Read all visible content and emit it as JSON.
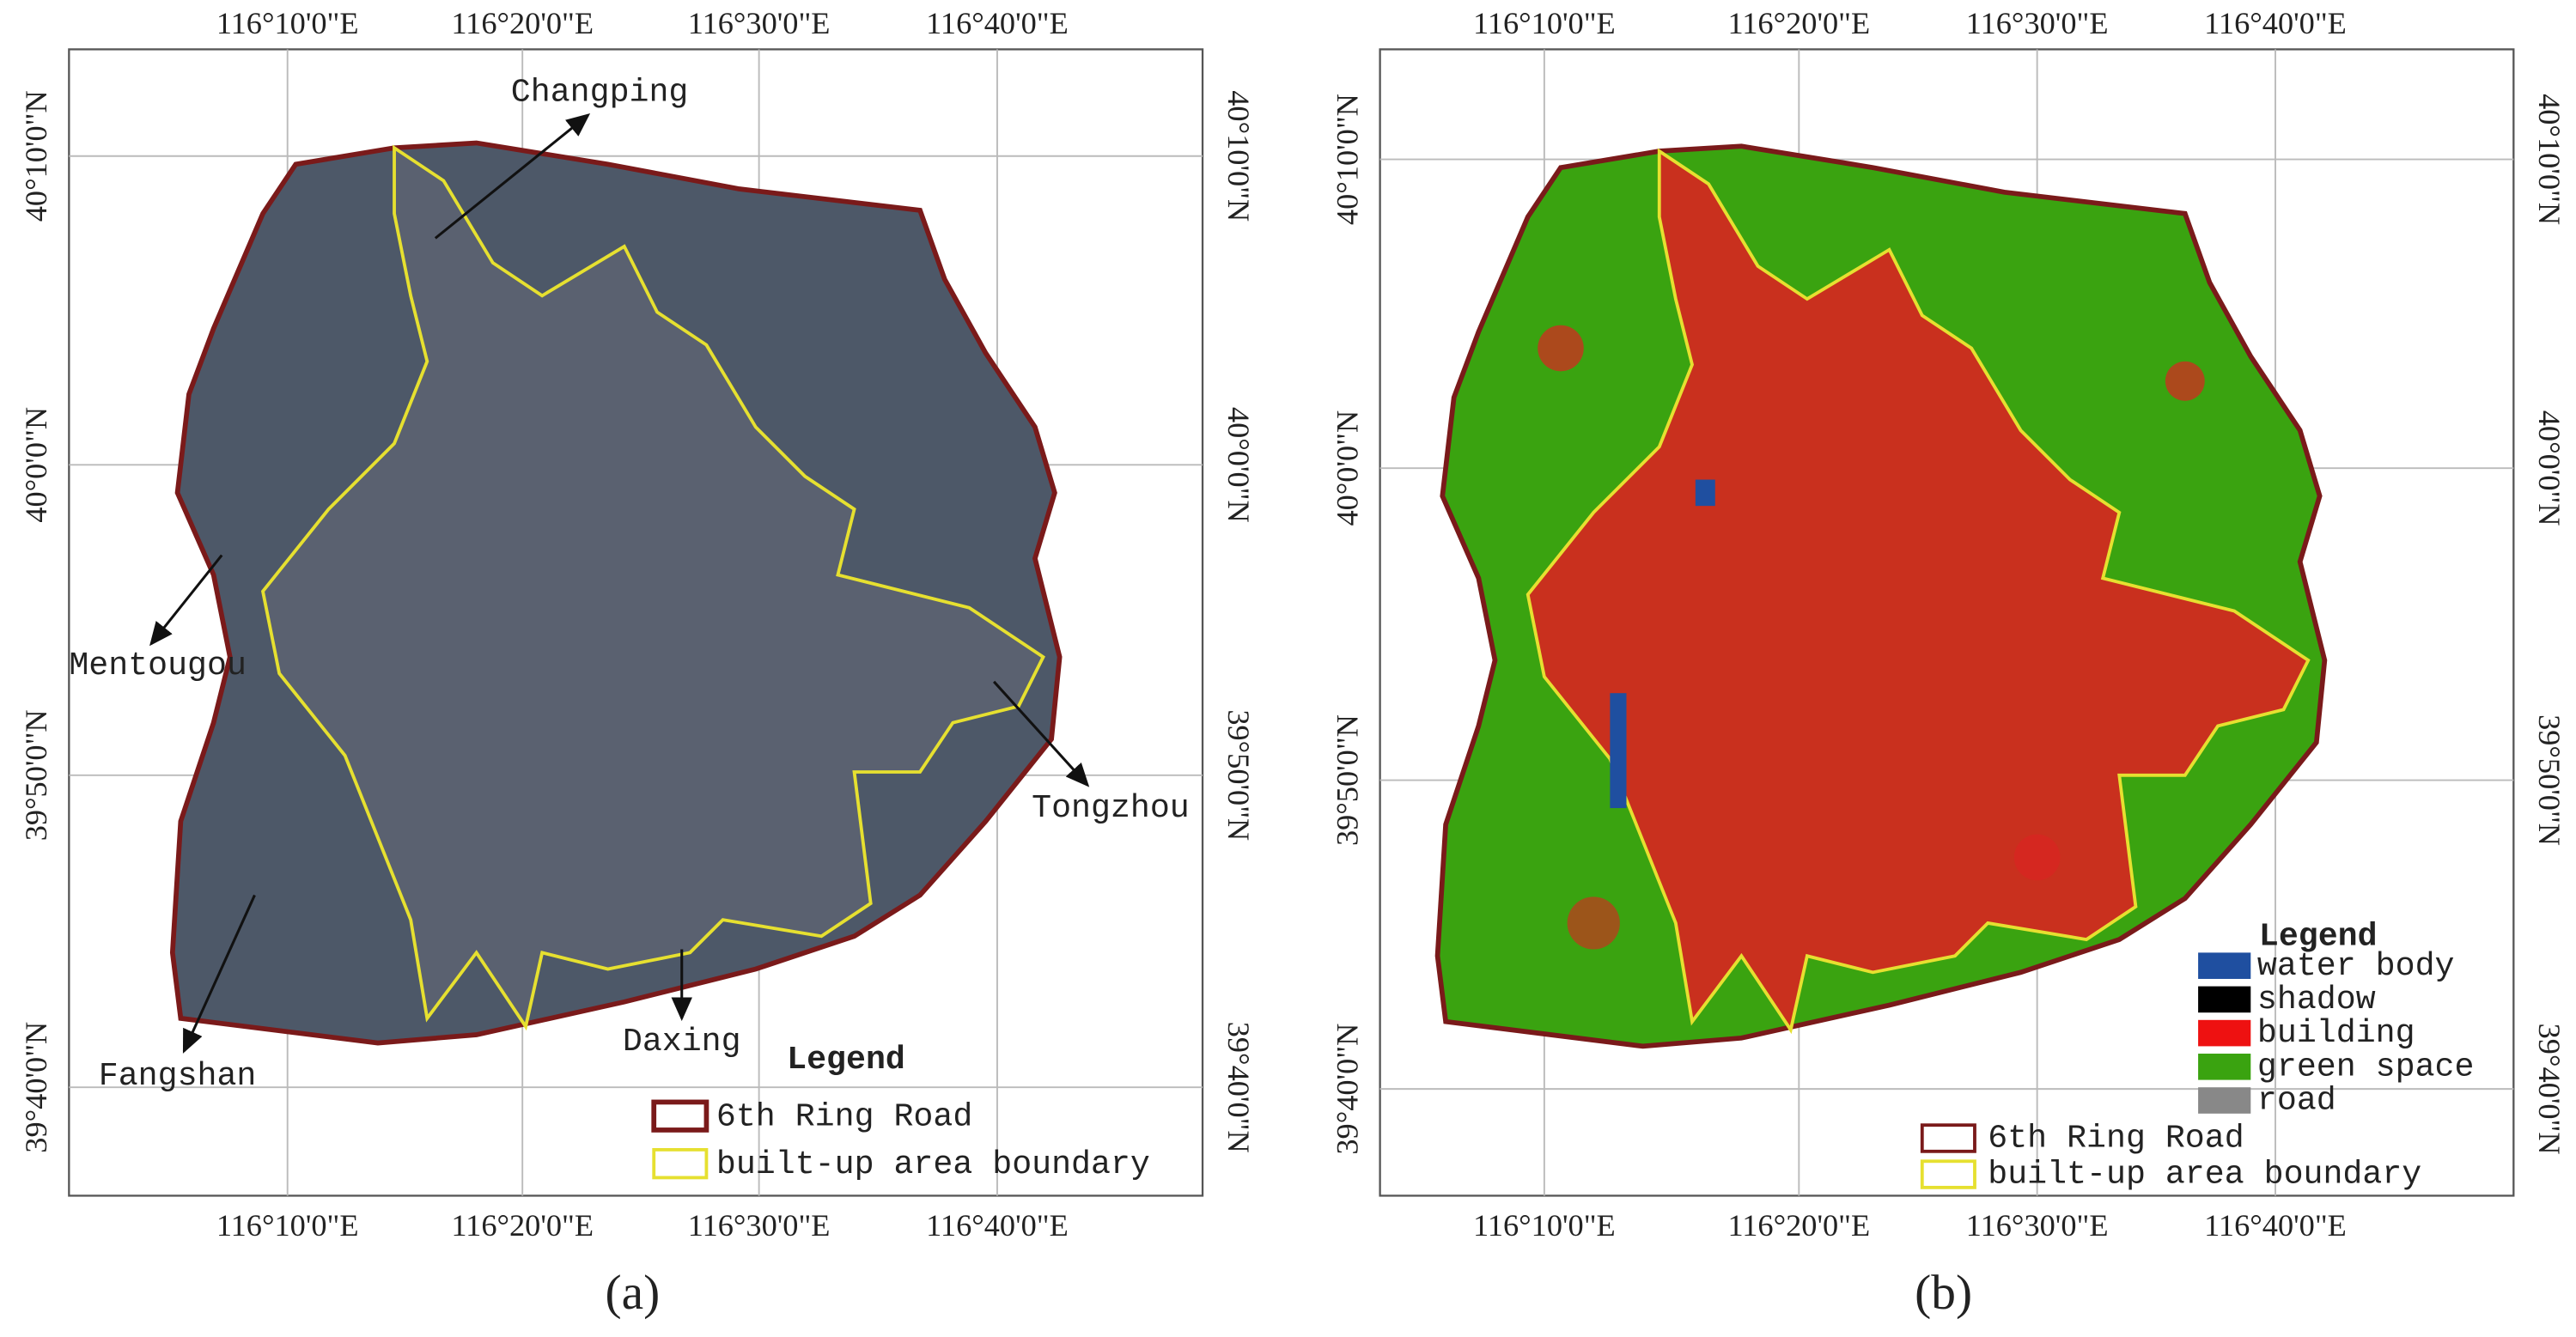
{
  "panels": [
    {
      "caption": "(a)",
      "lon_labels": [
        "116°10'0\"E",
        "116°20'0\"E",
        "116°30'0\"E",
        "116°40'0\"E"
      ],
      "lat_labels": [
        "40°10'0\"N",
        "40°0'0\"N",
        "39°50'0\"N",
        "39°40'0\"N"
      ],
      "annotations": [
        "Changping",
        "Mentougou",
        "Tongzhou",
        "Fangshan",
        "Daxing"
      ],
      "legend": {
        "title": "Legend",
        "items": [
          "6th Ring Road",
          "built-up area boundary"
        ]
      }
    },
    {
      "caption": "(b)",
      "lon_labels": [
        "116°10'0\"E",
        "116°20'0\"E",
        "116°30'0\"E",
        "116°40'0\"E"
      ],
      "lat_labels": [
        "40°10'0\"N",
        "40°0'0\"N",
        "39°50'0\"N",
        "39°40'0\"N"
      ],
      "legend": {
        "title": "Legend",
        "classes": [
          "water body",
          "shadow",
          "building",
          "green space",
          "road"
        ],
        "items": [
          "6th Ring Road",
          "built-up area boundary"
        ]
      }
    }
  ]
}
